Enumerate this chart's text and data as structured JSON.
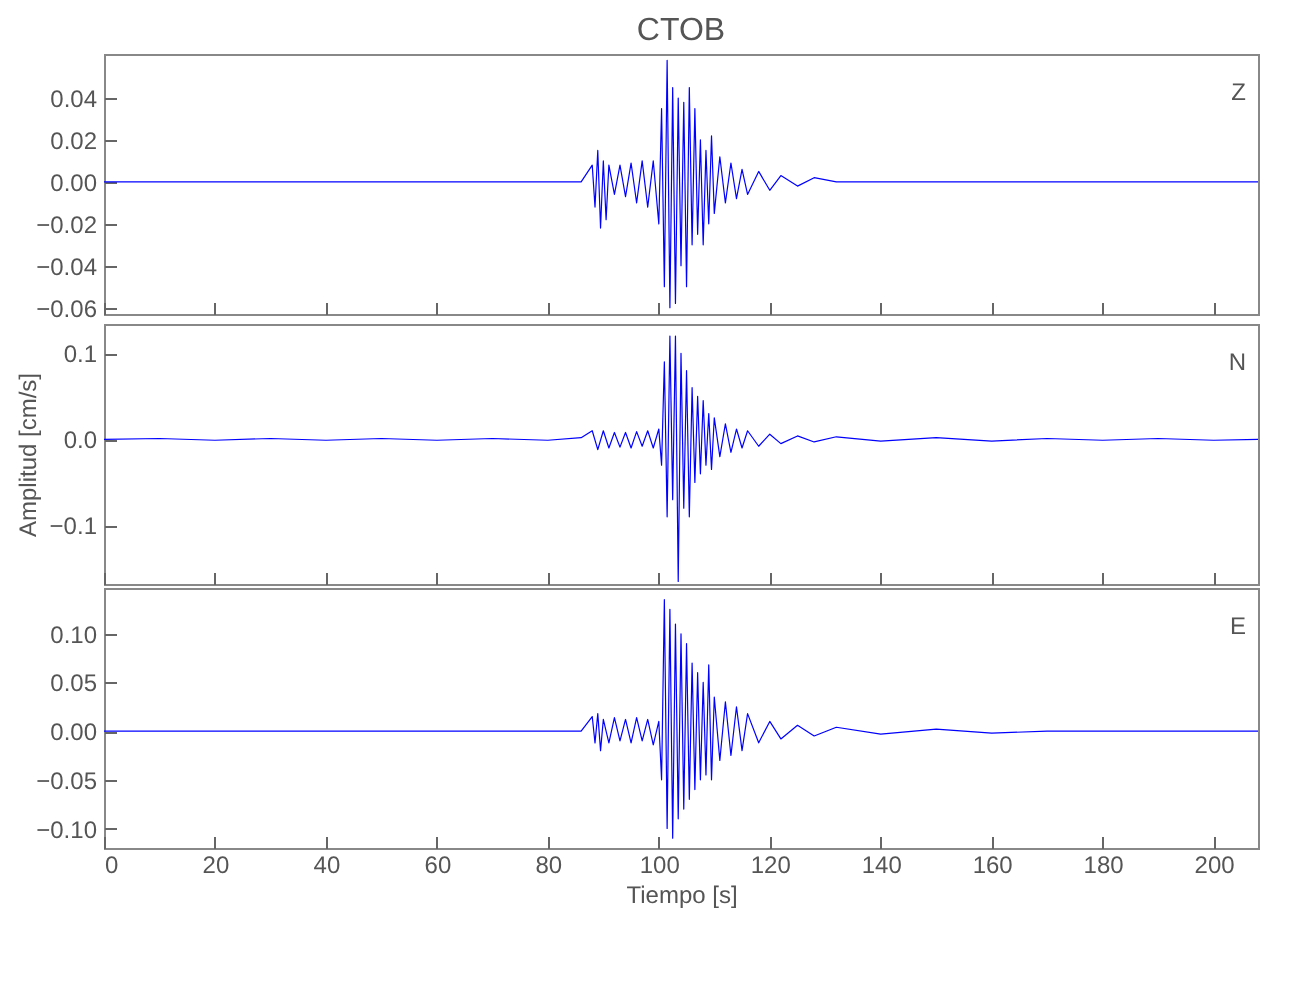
{
  "chart_data": [
    {
      "type": "line",
      "title": "CTOB",
      "annotations": [
        "Z"
      ],
      "tick_labels": "y",
      "grid": false,
      "xlim": [
        0,
        208
      ],
      "xticks": [
        0,
        20,
        40,
        60,
        80,
        100,
        120,
        140,
        160,
        180,
        200
      ],
      "ylim": [
        -0.063,
        0.061
      ],
      "yticks": [
        {
          "value": -0.06,
          "label": "−0.06"
        },
        {
          "value": -0.04,
          "label": "−0.04"
        },
        {
          "value": -0.02,
          "label": "−0.02"
        },
        {
          "value": 0,
          "label": "0.00"
        },
        {
          "value": 0.02,
          "label": "0.02"
        },
        {
          "value": 0.04,
          "label": "0.04"
        }
      ],
      "series": [
        {
          "color": "#0000ff",
          "x": [
            0,
            10,
            20,
            30,
            40,
            50,
            60,
            70,
            80,
            86,
            88,
            88.5,
            89,
            89.5,
            90,
            90.5,
            91,
            92,
            93,
            94,
            95,
            96,
            97,
            98,
            99,
            100,
            100.5,
            101,
            101.5,
            102,
            102.5,
            103,
            103.5,
            104,
            104.5,
            105,
            105.5,
            106,
            106.5,
            107,
            107.5,
            108,
            108.5,
            109,
            109.5,
            110,
            111,
            112,
            113,
            114,
            115,
            116,
            118,
            120,
            122,
            125,
            128,
            132,
            140,
            150,
            160,
            170,
            180,
            190,
            200,
            208
          ],
          "values": [
            0,
            0,
            0,
            0,
            0,
            0,
            0,
            0,
            0,
            0,
            0.008,
            -0.012,
            0.015,
            -0.022,
            0.01,
            -0.018,
            0.008,
            -0.006,
            0.008,
            -0.007,
            0.009,
            -0.01,
            0.01,
            -0.012,
            0.01,
            -0.02,
            0.035,
            -0.05,
            0.058,
            -0.06,
            0.045,
            -0.058,
            0.04,
            -0.04,
            0.038,
            -0.05,
            0.045,
            -0.03,
            0.035,
            -0.025,
            0.02,
            -0.03,
            0.015,
            -0.02,
            0.022,
            -0.015,
            0.012,
            -0.01,
            0.009,
            -0.008,
            0.006,
            -0.006,
            0.005,
            -0.004,
            0.003,
            -0.002,
            0.002,
            0,
            0,
            0,
            0,
            0,
            0,
            0,
            0,
            0
          ]
        }
      ]
    },
    {
      "type": "line",
      "ylabel": "Amplitud [cm/s]",
      "annotations": [
        "N"
      ],
      "tick_labels": "y",
      "grid": false,
      "xlim": [
        0,
        208
      ],
      "xticks": [
        0,
        20,
        40,
        60,
        80,
        100,
        120,
        140,
        160,
        180,
        200
      ],
      "ylim": [
        -0.168,
        0.134
      ],
      "yticks": [
        {
          "value": -0.1,
          "label": "−0.1"
        },
        {
          "value": 0,
          "label": "0.0"
        },
        {
          "value": 0.1,
          "label": "0.1"
        }
      ],
      "series": [
        {
          "color": "#0000ff",
          "x": [
            0,
            10,
            20,
            30,
            40,
            50,
            60,
            70,
            80,
            86,
            88,
            89,
            90,
            91,
            92,
            93,
            94,
            95,
            96,
            97,
            98,
            99,
            100,
            100.5,
            101,
            101.5,
            102,
            102.5,
            103,
            103.5,
            104,
            104.5,
            105,
            105.5,
            106,
            106.5,
            107,
            107.5,
            108,
            108.5,
            109,
            109.5,
            110,
            111,
            112,
            113,
            114,
            115,
            116,
            118,
            120,
            122,
            125,
            128,
            132,
            140,
            150,
            160,
            170,
            180,
            190,
            200,
            208
          ],
          "values": [
            0,
            0.001,
            -0.001,
            0.001,
            -0.001,
            0.001,
            -0.001,
            0.001,
            -0.001,
            0.002,
            0.01,
            -0.012,
            0.01,
            -0.01,
            0.008,
            -0.009,
            0.008,
            -0.01,
            0.009,
            -0.008,
            0.01,
            -0.01,
            0.012,
            -0.03,
            0.09,
            -0.09,
            0.12,
            -0.07,
            0.12,
            -0.165,
            0.1,
            -0.08,
            0.08,
            -0.09,
            0.06,
            -0.05,
            0.05,
            -0.04,
            0.045,
            -0.03,
            0.03,
            -0.035,
            0.025,
            -0.02,
            0.018,
            -0.015,
            0.012,
            -0.01,
            0.01,
            -0.008,
            0.006,
            -0.005,
            0.004,
            -0.003,
            0.003,
            -0.002,
            0.002,
            -0.002,
            0.001,
            -0.001,
            0.001,
            -0.001,
            0
          ]
        }
      ]
    },
    {
      "type": "line",
      "xlabel": "Tiempo [s]",
      "annotations": [
        "E"
      ],
      "grid": false,
      "xlim": [
        0,
        208
      ],
      "xticks": [
        0,
        20,
        40,
        60,
        80,
        100,
        120,
        140,
        160,
        180,
        200
      ],
      "ylim": [
        -0.12,
        0.147
      ],
      "yticks": [
        {
          "value": -0.1,
          "label": "−0.10"
        },
        {
          "value": -0.05,
          "label": "−0.05"
        },
        {
          "value": 0,
          "label": "0.00"
        },
        {
          "value": 0.05,
          "label": "0.05"
        },
        {
          "value": 0.1,
          "label": "0.10"
        }
      ],
      "series": [
        {
          "color": "#0000ff",
          "x": [
            0,
            10,
            20,
            30,
            40,
            50,
            60,
            70,
            80,
            86,
            88,
            88.5,
            89,
            89.5,
            90,
            91,
            92,
            93,
            94,
            95,
            96,
            97,
            98,
            99,
            100,
            100.5,
            101,
            101.5,
            102,
            102.5,
            103,
            103.5,
            104,
            104.5,
            105,
            105.5,
            106,
            106.5,
            107,
            107.5,
            108,
            108.5,
            109,
            109.5,
            110,
            111,
            112,
            113,
            114,
            115,
            116,
            118,
            120,
            122,
            125,
            128,
            132,
            140,
            150,
            160,
            170,
            180,
            190,
            200,
            208
          ],
          "values": [
            0,
            0,
            0,
            0,
            0,
            0,
            0,
            0,
            0,
            0,
            0.015,
            -0.012,
            0.018,
            -0.02,
            0.012,
            -0.012,
            0.014,
            -0.01,
            0.012,
            -0.012,
            0.014,
            -0.01,
            0.012,
            -0.014,
            0.01,
            -0.05,
            0.135,
            -0.1,
            0.125,
            -0.11,
            0.11,
            -0.09,
            0.1,
            -0.08,
            0.09,
            -0.07,
            0.07,
            -0.06,
            0.06,
            -0.05,
            0.05,
            -0.045,
            0.068,
            -0.05,
            0.035,
            -0.03,
            0.03,
            -0.025,
            0.025,
            -0.02,
            0.018,
            -0.012,
            0.01,
            -0.008,
            0.006,
            -0.005,
            0.004,
            -0.003,
            0.002,
            -0.002,
            0,
            0,
            0,
            0,
            0
          ]
        }
      ]
    }
  ]
}
